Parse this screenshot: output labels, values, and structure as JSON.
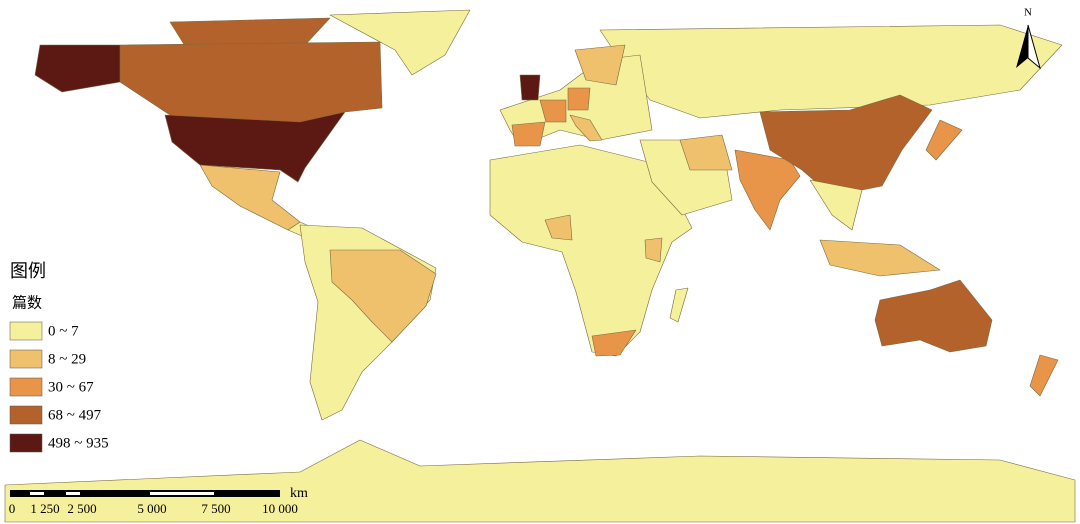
{
  "legend": {
    "title": "图例",
    "subtitle": "篇数",
    "items": [
      {
        "label": "0 ~ 7",
        "color": "#f4f09c"
      },
      {
        "label": "8 ~ 29",
        "color": "#f0c16c"
      },
      {
        "label": "30 ~ 67",
        "color": "#e8954a"
      },
      {
        "label": "68 ~ 497",
        "color": "#b4622b"
      },
      {
        "label": "498 ~ 935",
        "color": "#5c1913"
      }
    ]
  },
  "scale_bar": {
    "labels": [
      "0",
      "1 250",
      "2 500",
      "5 000",
      "7 500",
      "10 000"
    ],
    "unit": "km"
  },
  "north_arrow": {
    "label": "N"
  }
}
